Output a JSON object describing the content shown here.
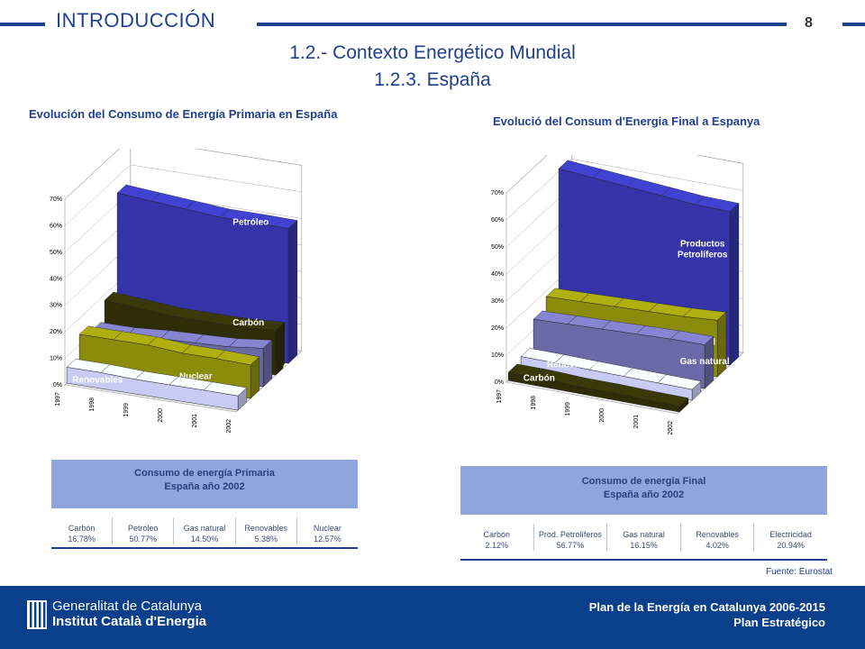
{
  "header": {
    "section": "INTRODUCCIÓN",
    "page_number": "8",
    "title_line1": "1.2.- Contexto Energético Mundial",
    "title_line2": "1.2.3. España"
  },
  "colors": {
    "accent": "#1f3f8f",
    "footer": "#0a3f8c",
    "table_header": "#8ea6dc"
  },
  "chart_data": [
    {
      "type": "area",
      "title": "Evolución del Consumo de Energía Primaria en España",
      "categories": [
        "1997",
        "1998",
        "1999",
        "2000",
        "2001",
        "2002"
      ],
      "y_ticks": [
        "0%",
        "10%",
        "20%",
        "30%",
        "40%",
        "50%",
        "60%",
        "70%"
      ],
      "ylim": [
        0,
        70
      ],
      "series": [
        {
          "name": "Renovables",
          "values": [
            6,
            6,
            5.5,
            5.5,
            5.5,
            5.4
          ],
          "color": "#c8ccf4"
        },
        {
          "name": "Nuclear",
          "values": [
            14,
            14,
            14,
            13,
            13,
            12.6
          ],
          "color": "#8c8c0c"
        },
        {
          "name": "Gas natural",
          "values": [
            11,
            11,
            12,
            12.5,
            13,
            14.5
          ],
          "color": "#6a6aa8"
        },
        {
          "name": "Carbón",
          "values": [
            18,
            17,
            16,
            16,
            16,
            16.8
          ],
          "color": "#2e2e06"
        },
        {
          "name": "Petróleo",
          "values": [
            54,
            53,
            52,
            51,
            51,
            50.8
          ],
          "color": "#3434a8"
        }
      ]
    },
    {
      "type": "area",
      "title": "Evolució del Consum d'Energia Final a Espanya",
      "categories": [
        "1997",
        "1998",
        "1999",
        "2000",
        "2001",
        "2002"
      ],
      "y_ticks": [
        "0%",
        "10%",
        "20%",
        "30%",
        "40%",
        "50%",
        "60%",
        "70%"
      ],
      "ylim": [
        0,
        70
      ],
      "series": [
        {
          "name": "Carbón",
          "values": [
            3,
            3,
            2.5,
            2.5,
            2.2,
            2.1
          ],
          "color": "#2e2e06"
        },
        {
          "name": "Renovables",
          "values": [
            4.5,
            4.5,
            4.3,
            4.2,
            4.1,
            4.0
          ],
          "color": "#c8ccf4"
        },
        {
          "name": "Gas natural",
          "values": [
            14,
            14.5,
            15,
            15.5,
            16,
            16.2
          ],
          "color": "#6a6aa8"
        },
        {
          "name": "Electricidad",
          "values": [
            18,
            18.5,
            19,
            19.5,
            20,
            20.9
          ],
          "color": "#8c8c0c"
        },
        {
          "name": "Productos Petrolíferos",
          "values": [
            61,
            60,
            59,
            58,
            57,
            56.8
          ],
          "color": "#3434a8"
        }
      ]
    }
  ],
  "tables": {
    "primary": {
      "title_line1": "Consumo de energía Primaria",
      "title_line2": "España año 2002",
      "cells": [
        {
          "name": "Carbón",
          "value": "16.78%"
        },
        {
          "name": "Petróleo",
          "value": "50.77%"
        },
        {
          "name": "Gas natural",
          "value": "14.50%"
        },
        {
          "name": "Renovables",
          "value": "5.38%"
        },
        {
          "name": "Nuclear",
          "value": "12.57%"
        }
      ]
    },
    "final": {
      "title_line1": "Consumo de energía Final",
      "title_line2": "España año 2002",
      "cells": [
        {
          "name": "Carbón",
          "value": "2.12%"
        },
        {
          "name": "Prod. Petrolíferos",
          "value": "56.77%"
        },
        {
          "name": "Gas natural",
          "value": "16.15%"
        },
        {
          "name": "Renovables",
          "value": "4.02%"
        },
        {
          "name": "Electricidad",
          "value": "20.94%"
        }
      ]
    }
  },
  "source": "Fuente: Eurostat",
  "footer": {
    "org_line1": "Generalitat de Catalunya",
    "org_line2": "Institut Català d'Energia",
    "plan_line1": "Plan de la Energía en Catalunya 2006-2015",
    "plan_line2": "Plan Estratégico"
  }
}
